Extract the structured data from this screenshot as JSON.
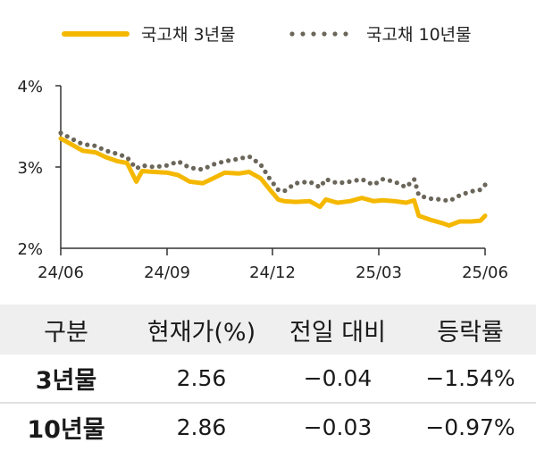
{
  "chart_data": {
    "type": "line",
    "ylabel_ticks": [
      "4%",
      "3%",
      "2%"
    ],
    "x_ticks": [
      "24/06",
      "24/09",
      "24/12",
      "25/03",
      "25/06"
    ],
    "ylim": [
      2.0,
      4.0
    ],
    "xlim": [
      "2024-06-01",
      "2025-06-01"
    ],
    "legend_position": "top",
    "series": [
      {
        "name": "국고채 3년물",
        "style": "solid",
        "color": "#f5b800",
        "points": [
          [
            "2024-06-01",
            3.35
          ],
          [
            "2024-06-10",
            3.28
          ],
          [
            "2024-06-20",
            3.2
          ],
          [
            "2024-07-01",
            3.18
          ],
          [
            "2024-07-10",
            3.12
          ],
          [
            "2024-07-20",
            3.07
          ],
          [
            "2024-07-28",
            3.05
          ],
          [
            "2024-08-05",
            2.82
          ],
          [
            "2024-08-10",
            2.95
          ],
          [
            "2024-08-20",
            2.94
          ],
          [
            "2024-09-01",
            2.93
          ],
          [
            "2024-09-10",
            2.9
          ],
          [
            "2024-09-20",
            2.82
          ],
          [
            "2024-10-01",
            2.8
          ],
          [
            "2024-10-10",
            2.86
          ],
          [
            "2024-10-20",
            2.93
          ],
          [
            "2024-11-01",
            2.92
          ],
          [
            "2024-11-10",
            2.94
          ],
          [
            "2024-11-20",
            2.86
          ],
          [
            "2024-11-28",
            2.72
          ],
          [
            "2024-12-05",
            2.6
          ],
          [
            "2024-12-10",
            2.58
          ],
          [
            "2024-12-20",
            2.57
          ],
          [
            "2025-01-01",
            2.58
          ],
          [
            "2025-01-10",
            2.51
          ],
          [
            "2025-01-15",
            2.6
          ],
          [
            "2025-01-25",
            2.56
          ],
          [
            "2025-02-05",
            2.58
          ],
          [
            "2025-02-15",
            2.62
          ],
          [
            "2025-02-25",
            2.58
          ],
          [
            "2025-03-05",
            2.59
          ],
          [
            "2025-03-15",
            2.58
          ],
          [
            "2025-03-25",
            2.56
          ],
          [
            "2025-04-01",
            2.59
          ],
          [
            "2025-04-05",
            2.4
          ],
          [
            "2025-04-15",
            2.35
          ],
          [
            "2025-04-25",
            2.31
          ],
          [
            "2025-05-01",
            2.28
          ],
          [
            "2025-05-10",
            2.33
          ],
          [
            "2025-05-20",
            2.33
          ],
          [
            "2025-05-28",
            2.34
          ],
          [
            "2025-06-01",
            2.4
          ]
        ]
      },
      {
        "name": "국고채 10년물",
        "style": "dotted",
        "color": "#6b665a",
        "points": [
          [
            "2024-06-01",
            3.42
          ],
          [
            "2024-06-10",
            3.35
          ],
          [
            "2024-06-20",
            3.28
          ],
          [
            "2024-07-01",
            3.26
          ],
          [
            "2024-07-10",
            3.2
          ],
          [
            "2024-07-20",
            3.16
          ],
          [
            "2024-07-28",
            3.12
          ],
          [
            "2024-08-05",
            2.98
          ],
          [
            "2024-08-10",
            3.02
          ],
          [
            "2024-08-20",
            3.0
          ],
          [
            "2024-09-01",
            3.02
          ],
          [
            "2024-09-10",
            3.07
          ],
          [
            "2024-09-20",
            2.99
          ],
          [
            "2024-10-01",
            2.97
          ],
          [
            "2024-10-10",
            3.03
          ],
          [
            "2024-10-20",
            3.07
          ],
          [
            "2024-11-01",
            3.1
          ],
          [
            "2024-11-10",
            3.13
          ],
          [
            "2024-11-20",
            3.03
          ],
          [
            "2024-11-28",
            2.85
          ],
          [
            "2024-12-05",
            2.72
          ],
          [
            "2024-12-10",
            2.7
          ],
          [
            "2024-12-20",
            2.8
          ],
          [
            "2025-01-01",
            2.82
          ],
          [
            "2025-01-10",
            2.75
          ],
          [
            "2025-01-15",
            2.85
          ],
          [
            "2025-01-25",
            2.8
          ],
          [
            "2025-02-05",
            2.82
          ],
          [
            "2025-02-15",
            2.85
          ],
          [
            "2025-02-25",
            2.78
          ],
          [
            "2025-03-05",
            2.85
          ],
          [
            "2025-03-15",
            2.82
          ],
          [
            "2025-03-25",
            2.75
          ],
          [
            "2025-04-01",
            2.85
          ],
          [
            "2025-04-05",
            2.65
          ],
          [
            "2025-04-15",
            2.61
          ],
          [
            "2025-04-25",
            2.6
          ],
          [
            "2025-05-01",
            2.58
          ],
          [
            "2025-05-10",
            2.65
          ],
          [
            "2025-05-20",
            2.7
          ],
          [
            "2025-05-28",
            2.72
          ],
          [
            "2025-06-01",
            2.78
          ]
        ]
      }
    ]
  },
  "table": {
    "headers": [
      "구분",
      "현재가(%)",
      "전일 대비",
      "등락률"
    ],
    "rows": [
      [
        "3년물",
        "2.56",
        "−0.04",
        "−1.54%"
      ],
      [
        "10년물",
        "2.86",
        "−0.03",
        "−0.97%"
      ]
    ]
  }
}
